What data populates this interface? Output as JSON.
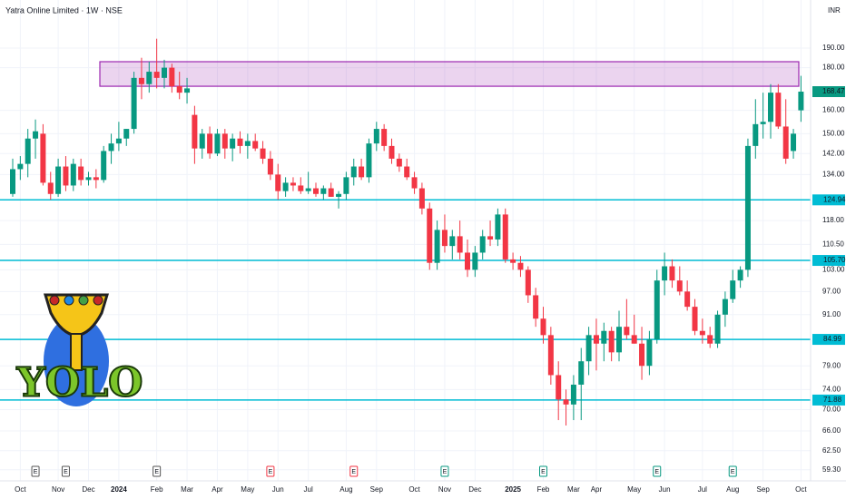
{
  "chart_data": {
    "type": "candlestick",
    "title": "Yatra Online Limited · 1W · NSE",
    "currency": "INR",
    "log_scale": true,
    "grid": true,
    "up_color": "#089981",
    "down_color": "#f23645",
    "categories": [
      null,
      "Oct",
      null,
      null,
      null,
      null,
      "Nov",
      null,
      null,
      null,
      "Dec",
      null,
      null,
      null,
      "2024",
      null,
      null,
      null,
      null,
      "Feb",
      null,
      null,
      null,
      "Mar",
      null,
      null,
      null,
      "Apr",
      null,
      null,
      null,
      "May",
      null,
      null,
      null,
      "Jun",
      null,
      null,
      null,
      "Jul",
      null,
      null,
      null,
      null,
      "Aug",
      null,
      null,
      null,
      "Sep",
      null,
      null,
      null,
      null,
      "Oct",
      null,
      null,
      null,
      "Nov",
      null,
      null,
      null,
      "Dec",
      null,
      null,
      null,
      null,
      "2025",
      null,
      null,
      null,
      "Feb",
      null,
      null,
      null,
      "Mar",
      null,
      null,
      "Apr",
      null,
      null,
      null,
      null,
      "May",
      null,
      null,
      null,
      "Jun",
      null,
      null,
      null,
      null,
      "Jul",
      null,
      null,
      null,
      "Aug",
      null,
      null,
      null,
      "Sep",
      null,
      null,
      null,
      null,
      "Oct"
    ],
    "open": [
      127,
      136,
      138,
      148,
      150,
      131,
      127,
      137,
      130,
      137,
      132,
      133,
      132,
      143,
      146,
      148,
      152,
      175,
      172,
      178,
      175,
      180,
      171,
      168,
      158,
      144,
      150,
      142,
      150,
      144,
      148,
      145,
      147,
      144,
      140,
      134,
      128,
      131,
      130,
      128,
      129,
      127,
      129,
      126,
      127,
      133,
      137,
      133,
      146,
      152,
      145,
      140,
      137,
      133,
      129,
      122,
      105,
      115,
      110,
      113,
      108,
      103,
      108,
      113,
      112,
      120,
      106,
      105,
      103,
      96,
      90,
      86,
      77,
      72,
      71,
      75,
      80,
      86,
      84,
      87,
      82,
      88,
      86,
      84,
      79,
      85,
      100,
      104,
      100,
      97,
      93,
      87,
      86,
      84,
      91,
      95,
      100,
      103,
      145,
      154,
      155,
      168,
      153,
      143,
      160
    ],
    "high": [
      140,
      141,
      152,
      156,
      154,
      135,
      140,
      141,
      140,
      140,
      135,
      136,
      145,
      150,
      155,
      152,
      178,
      185,
      183,
      195,
      184,
      182,
      178,
      175,
      162,
      152,
      153,
      152,
      152,
      150,
      151,
      150,
      150,
      147,
      143,
      138,
      133,
      133,
      133,
      135,
      131,
      130,
      131,
      128,
      135,
      140,
      140,
      148,
      155,
      154,
      148,
      142,
      140,
      135,
      131,
      124,
      118,
      120,
      115,
      118,
      112,
      110,
      115,
      118,
      122,
      122,
      108,
      107,
      104,
      98,
      93,
      88,
      80,
      74,
      77,
      83,
      88,
      90,
      89,
      88,
      92,
      95,
      91,
      88,
      87,
      103,
      108,
      106,
      104,
      100,
      95,
      90,
      88,
      92,
      97,
      103,
      104,
      148,
      165,
      168,
      172,
      172,
      165,
      152,
      176
    ],
    "low": [
      126,
      132,
      133,
      140,
      130,
      125,
      126,
      128,
      128,
      130,
      130,
      129,
      131,
      138,
      143,
      145,
      150,
      165,
      168,
      170,
      170,
      168,
      165,
      163,
      138,
      140,
      140,
      141,
      140,
      139,
      142,
      140,
      143,
      138,
      132,
      125,
      126,
      128,
      127,
      127,
      126,
      125,
      126,
      122,
      125,
      130,
      132,
      131,
      143,
      143,
      138,
      135,
      132,
      127,
      120,
      103,
      103,
      108,
      106,
      106,
      101,
      101,
      106,
      110,
      110,
      105,
      103,
      101,
      94,
      88,
      84,
      75,
      68,
      67,
      68,
      68,
      77,
      78,
      80,
      80,
      80,
      85,
      84,
      76,
      77,
      84,
      96,
      98,
      96,
      92,
      86,
      84,
      83,
      83,
      88,
      94,
      98,
      101,
      140,
      148,
      148,
      152,
      138,
      140,
      155
    ],
    "close": [
      136,
      138,
      148,
      151,
      131,
      127,
      137,
      130,
      138,
      132,
      133,
      132,
      143,
      146,
      148,
      152,
      175,
      172,
      178,
      175,
      180,
      171,
      168,
      170,
      144,
      150,
      142,
      150,
      144,
      148,
      145,
      147,
      144,
      140,
      134,
      128,
      131,
      130,
      128,
      129,
      127,
      129,
      126,
      127,
      133,
      137,
      133,
      146,
      152,
      145,
      140,
      137,
      133,
      129,
      122,
      105,
      115,
      110,
      113,
      108,
      103,
      108,
      113,
      112,
      120,
      106,
      105,
      103,
      96,
      90,
      86,
      77,
      72,
      71,
      75,
      80,
      86,
      84,
      87,
      82,
      88,
      86,
      84,
      79,
      85,
      100,
      104,
      100,
      97,
      93,
      87,
      86,
      84,
      91,
      95,
      100,
      103,
      145,
      154,
      155,
      168,
      153,
      140,
      150,
      168.47
    ],
    "ylim": [
      57.5,
      217
    ],
    "yticks": [
      {
        "value": 190,
        "label": "190.00"
      },
      {
        "value": 180,
        "label": "180.00"
      },
      {
        "value": 160,
        "label": "160.00"
      },
      {
        "value": 150,
        "label": "150.00"
      },
      {
        "value": 142,
        "label": "142.00"
      },
      {
        "value": 134,
        "label": "134.00"
      },
      {
        "value": 118,
        "label": "118.00"
      },
      {
        "value": 110.5,
        "label": "110.50"
      },
      {
        "value": 103,
        "label": "103.00"
      },
      {
        "value": 97,
        "label": "97.00"
      },
      {
        "value": 91,
        "label": "91.00"
      },
      {
        "value": 79,
        "label": "79.00"
      },
      {
        "value": 74,
        "label": "74.00"
      },
      {
        "value": 70,
        "label": "70.00"
      },
      {
        "value": 66,
        "label": "66.00"
      },
      {
        "value": 62.5,
        "label": "62.50"
      },
      {
        "value": 59.3,
        "label": "59.30"
      }
    ],
    "levels": [
      {
        "value": 124.94,
        "color": "#00bcd4"
      },
      {
        "value": 105.7,
        "label": "105.70",
        "color": "#00bcd4"
      },
      {
        "value": 84.99,
        "color": "#00bcd4"
      },
      {
        "value": 71.88,
        "color": "#00bcd4"
      }
    ],
    "zone": {
      "low": 171,
      "high": 183,
      "color": "#9c27b0"
    },
    "last_price": {
      "value": 168.47,
      "color": "#089981"
    },
    "earnings": {
      "label": "E",
      "weeks": [
        3,
        7,
        19,
        34,
        45,
        57,
        70,
        85,
        95
      ],
      "colors": [
        "#555555",
        "#555555",
        "#555555",
        "#f23645",
        "#f23645",
        "#089981",
        "#089981",
        "#089981",
        "#089981"
      ]
    }
  },
  "logo": {
    "text": "YOLO"
  }
}
